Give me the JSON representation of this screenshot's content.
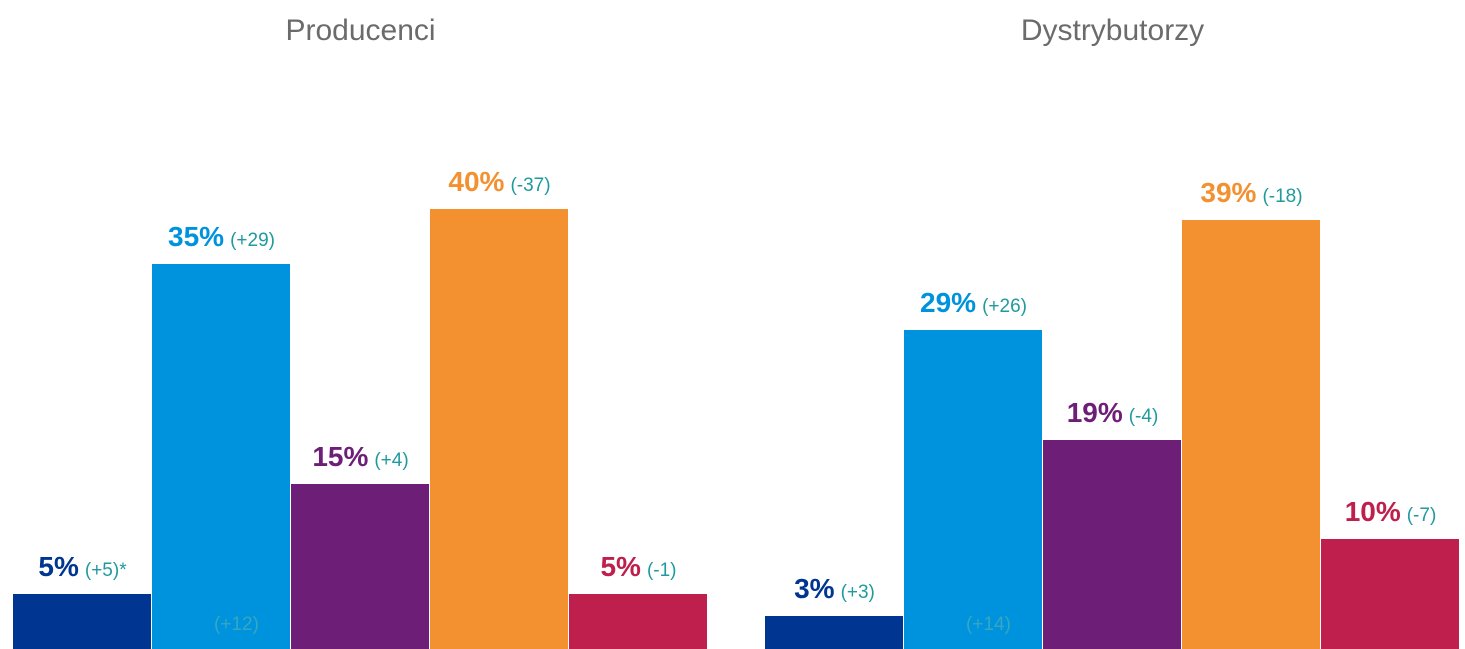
{
  "chart_data": [
    {
      "type": "bar",
      "title": "Producenci",
      "categories": [
        null,
        null,
        null,
        null,
        null
      ],
      "values": [
        5,
        35,
        15,
        40,
        5
      ],
      "value_labels": [
        "5%",
        "35%",
        "15%",
        "40%",
        "5%"
      ],
      "change_labels": [
        "(+5)*",
        "(+29)",
        "(+4)",
        "(-37)",
        "(-1)"
      ],
      "colors": [
        "#003591",
        "#0093dd",
        "#6d1f77",
        "#f39131",
        "#bf1f4d"
      ],
      "annotations": [
        "(+12)"
      ],
      "ylim": [
        0,
        59
      ]
    },
    {
      "type": "bar",
      "title": "Dystrybutorzy",
      "categories": [
        null,
        null,
        null,
        null,
        null
      ],
      "values": [
        3,
        29,
        19,
        39,
        10
      ],
      "value_labels": [
        "3%",
        "29%",
        "19%",
        "39%",
        "10%"
      ],
      "change_labels": [
        "(+3)",
        "(+26)",
        "(-4)",
        "(-18)",
        "(-7)"
      ],
      "colors": [
        "#003591",
        "#0093dd",
        "#6d1f77",
        "#f39131",
        "#bf1f4d"
      ],
      "annotations": [
        "(+14)"
      ],
      "ylim": [
        0,
        59
      ]
    }
  ]
}
